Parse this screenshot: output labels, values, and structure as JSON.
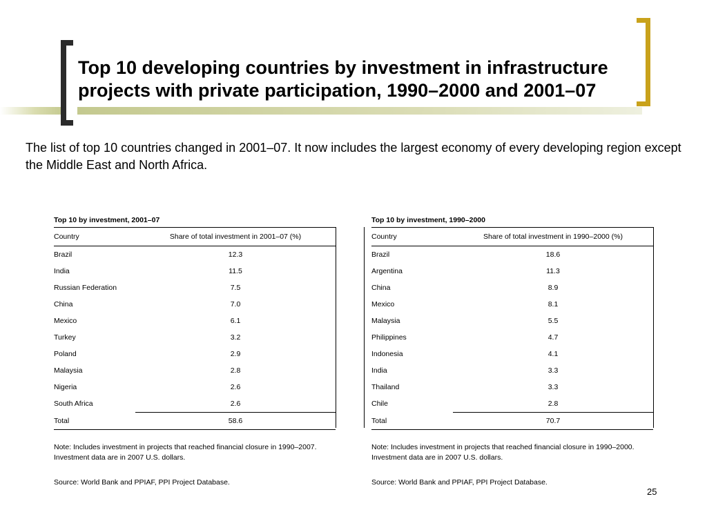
{
  "slide": {
    "title": "Top 10 developing countries by investment in infrastructure projects with private participation, 1990–2000 and 2001–07",
    "subtitle": "The list of top 10 countries changed in 2001–07. It now includes the largest economy of every developing region except the Middle East and North Africa.",
    "page_number": "25"
  },
  "tables": {
    "left": {
      "title": "Top 10 by investment, 2001–07",
      "col_country": "Country",
      "col_share": "Share of total investment in 2001–07 (%)",
      "rows": [
        {
          "country": "Brazil",
          "share": "12.3"
        },
        {
          "country": "India",
          "share": "11.5"
        },
        {
          "country": "Russian Federation",
          "share": "7.5"
        },
        {
          "country": "China",
          "share": "7.0"
        },
        {
          "country": "Mexico",
          "share": "6.1"
        },
        {
          "country": "Turkey",
          "share": "3.2"
        },
        {
          "country": "Poland",
          "share": "2.9"
        },
        {
          "country": "Malaysia",
          "share": "2.8"
        },
        {
          "country": "Nigeria",
          "share": "2.6"
        },
        {
          "country": "South Africa",
          "share": "2.6"
        }
      ],
      "total_label": "Total",
      "total_value": "58.6",
      "note": "Note: Includes investment in projects that reached financial closure in 1990–2007. Investment data are in 2007 U.S. dollars.",
      "source": "Source: World Bank and PPIAF, PPI Project Database."
    },
    "right": {
      "title": "Top 10 by investment, 1990–2000",
      "col_country": "Country",
      "col_share": "Share of total investment in 1990–2000 (%)",
      "rows": [
        {
          "country": "Brazil",
          "share": "18.6"
        },
        {
          "country": "Argentina",
          "share": "11.3"
        },
        {
          "country": "China",
          "share": "8.9"
        },
        {
          "country": "Mexico",
          "share": "8.1"
        },
        {
          "country": "Malaysia",
          "share": "5.5"
        },
        {
          "country": "Philippines",
          "share": "4.7"
        },
        {
          "country": "Indonesia",
          "share": "4.1"
        },
        {
          "country": "India",
          "share": "3.3"
        },
        {
          "country": "Thailand",
          "share": "3.3"
        },
        {
          "country": "Chile",
          "share": "2.8"
        }
      ],
      "total_label": "Total",
      "total_value": "70.7",
      "note": "Note: Includes investment in projects that reached financial closure in 1990–2000. Investment data are in 2007 U.S. dollars.",
      "source": "Source: World Bank and PPIAF, PPI Project Database."
    }
  }
}
